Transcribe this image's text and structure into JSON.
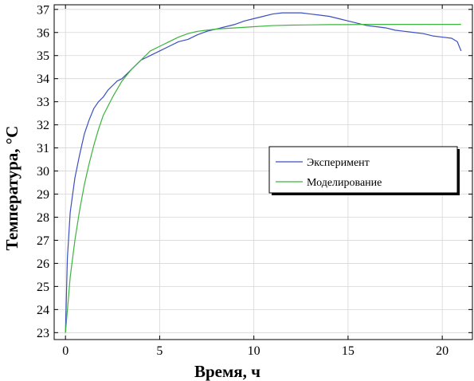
{
  "chart_data": {
    "type": "line",
    "xlabel": "Время, ч",
    "ylabel": "Температура, °С",
    "xlim": [
      -0.6,
      21.6
    ],
    "ylim": [
      22.7,
      37.2
    ],
    "xticks": [
      0,
      5,
      10,
      15,
      20
    ],
    "yticks": [
      23,
      24,
      25,
      26,
      27,
      28,
      29,
      30,
      31,
      32,
      33,
      34,
      35,
      36,
      37
    ],
    "grid": true,
    "legend_position": "right",
    "series": [
      {
        "name": "Эксперимент",
        "color": "#3a4fc2",
        "x": [
          0,
          0.1,
          0.25,
          0.5,
          0.75,
          1,
          1.25,
          1.5,
          1.75,
          2,
          2.25,
          2.5,
          2.75,
          3,
          3.25,
          3.5,
          3.75,
          4,
          4.25,
          4.5,
          4.75,
          5,
          5.5,
          6,
          6.5,
          7,
          7.5,
          8,
          8.5,
          9,
          9.5,
          10,
          10.5,
          11,
          11.5,
          12,
          12.5,
          13,
          13.5,
          14,
          14.5,
          15,
          15.5,
          16,
          16.5,
          17,
          17.5,
          18,
          18.5,
          19,
          19.5,
          20,
          20.5,
          20.8,
          21
        ],
        "y": [
          23.0,
          26.2,
          28.2,
          29.7,
          30.7,
          31.6,
          32.2,
          32.7,
          33.0,
          33.2,
          33.5,
          33.7,
          33.9,
          34.0,
          34.2,
          34.4,
          34.6,
          34.8,
          34.9,
          35.0,
          35.1,
          35.2,
          35.4,
          35.6,
          35.7,
          35.9,
          36.05,
          36.15,
          36.25,
          36.35,
          36.5,
          36.6,
          36.7,
          36.8,
          36.85,
          36.85,
          36.85,
          36.8,
          36.75,
          36.7,
          36.6,
          36.5,
          36.4,
          36.3,
          36.25,
          36.2,
          36.1,
          36.05,
          36.0,
          35.95,
          35.85,
          35.8,
          35.75,
          35.6,
          35.2
        ]
      },
      {
        "name": "Моделирование",
        "color": "#3cb43c",
        "x": [
          0,
          0.25,
          0.5,
          0.75,
          1,
          1.25,
          1.5,
          1.75,
          2,
          2.5,
          3,
          3.5,
          4,
          4.5,
          5,
          5.5,
          6,
          6.5,
          7,
          7.5,
          8,
          9,
          10,
          11,
          12,
          13,
          14,
          15,
          16,
          17,
          18,
          19,
          20,
          21
        ],
        "y": [
          23.0,
          25.4,
          27.0,
          28.3,
          29.4,
          30.3,
          31.1,
          31.8,
          32.4,
          33.2,
          33.9,
          34.4,
          34.8,
          35.2,
          35.4,
          35.6,
          35.8,
          35.95,
          36.05,
          36.1,
          36.15,
          36.2,
          36.25,
          36.3,
          36.32,
          36.33,
          36.34,
          36.34,
          36.35,
          36.35,
          36.35,
          36.35,
          36.35,
          36.35
        ]
      }
    ]
  }
}
